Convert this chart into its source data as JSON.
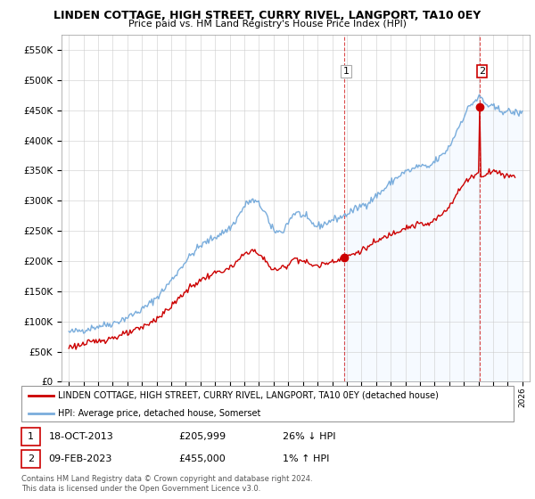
{
  "title": "LINDEN COTTAGE, HIGH STREET, CURRY RIVEL, LANGPORT, TA10 0EY",
  "subtitle": "Price paid vs. HM Land Registry's House Price Index (HPI)",
  "hpi_label": "HPI: Average price, detached house, Somerset",
  "property_label": "LINDEN COTTAGE, HIGH STREET, CURRY RIVEL, LANGPORT, TA10 0EY (detached house)",
  "copyright": "Contains HM Land Registry data © Crown copyright and database right 2024.\nThis data is licensed under the Open Government Licence v3.0.",
  "hpi_color": "#7aaddc",
  "hpi_fill_color": "#ddeeff",
  "property_color": "#cc0000",
  "ylim": [
    0,
    575000
  ],
  "yticks": [
    0,
    50000,
    100000,
    150000,
    200000,
    250000,
    300000,
    350000,
    400000,
    450000,
    500000,
    550000
  ],
  "purchase1_x": 2013.8,
  "purchase1_y": 205999,
  "purchase2_x": 2023.1,
  "purchase2_y": 455000,
  "vline1_x": 2013.8,
  "vline2_x": 2023.1,
  "xlim_left": 1994.5,
  "xlim_right": 2026.5
}
